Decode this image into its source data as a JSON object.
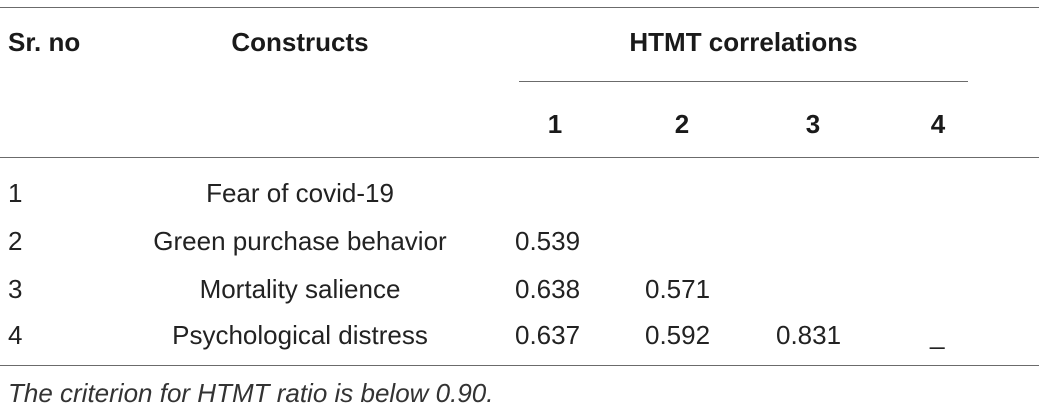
{
  "table": {
    "headers": {
      "sr_no": "Sr. no",
      "constructs": "Constructs",
      "htmt_group": "HTMT correlations",
      "columns": [
        "1",
        "2",
        "3",
        "4"
      ]
    },
    "rows": [
      {
        "sr": "1",
        "construct": "Fear of covid-19",
        "values": [
          "",
          "",
          "",
          ""
        ]
      },
      {
        "sr": "2",
        "construct": "Green purchase behavior",
        "values": [
          "0.539",
          "",
          "",
          ""
        ]
      },
      {
        "sr": "3",
        "construct": "Mortality salience",
        "values": [
          "0.638",
          "0.571",
          "",
          ""
        ]
      },
      {
        "sr": "4",
        "construct": "Psychological distress",
        "values": [
          "0.637",
          "0.592",
          "0.831",
          "_"
        ]
      }
    ],
    "note": "The criterion for HTMT ratio is below 0.90."
  }
}
